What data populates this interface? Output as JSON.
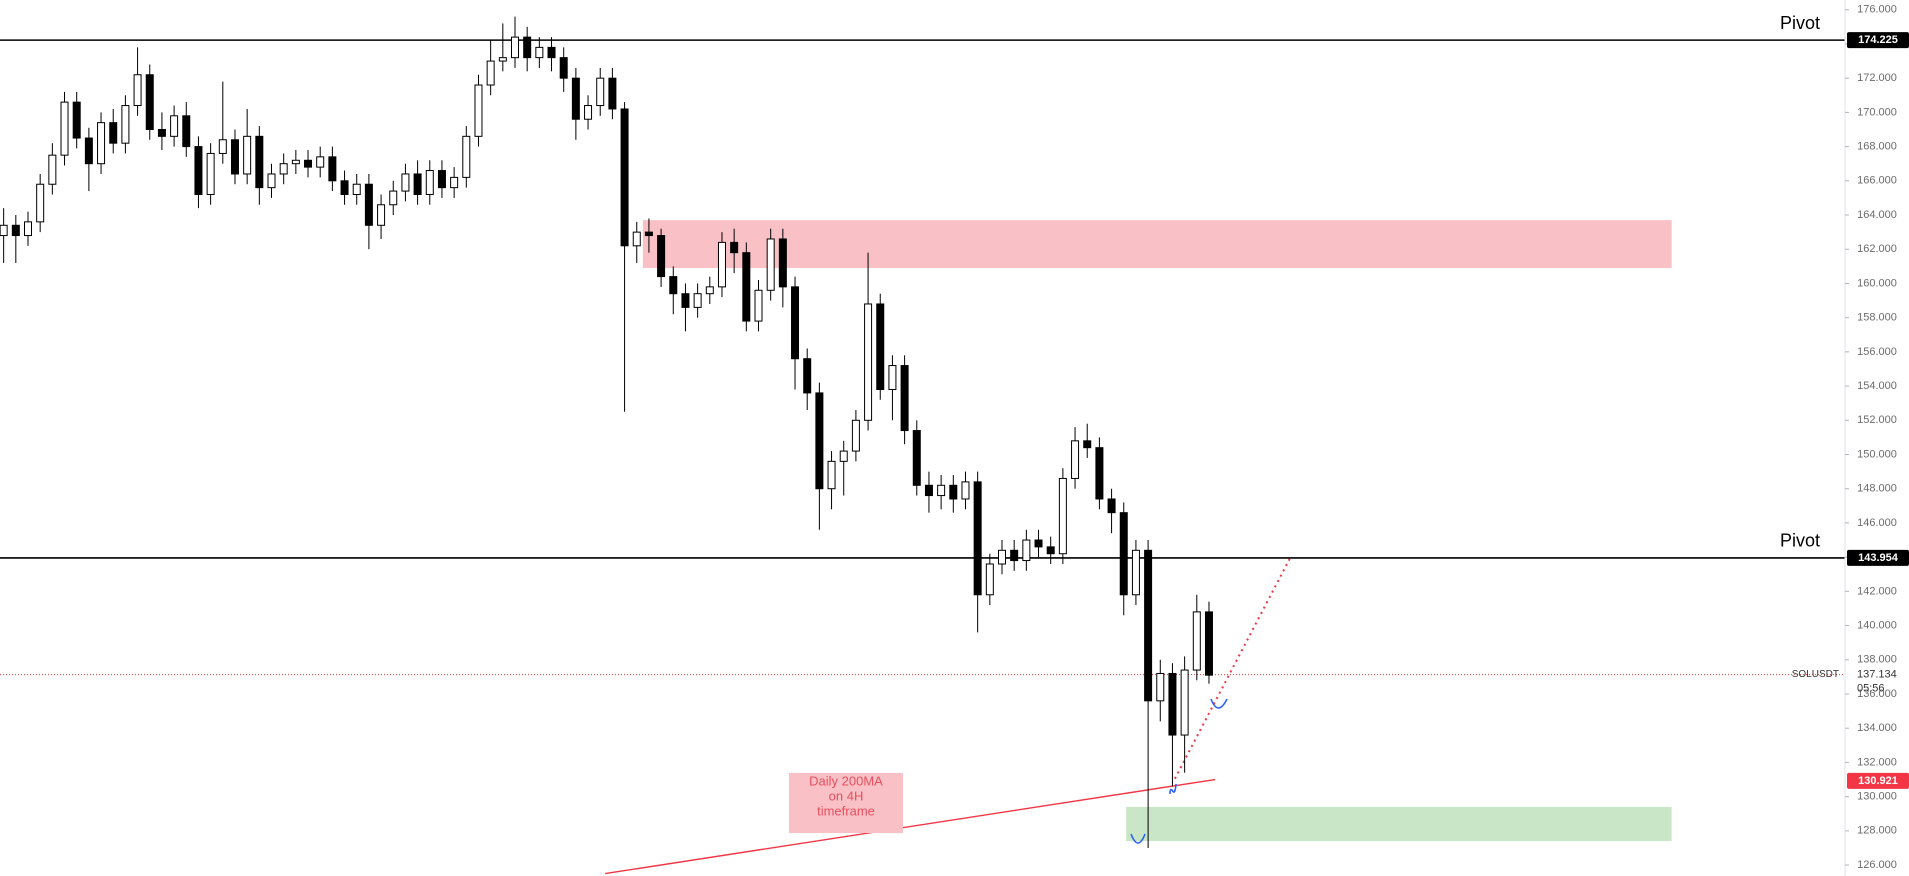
{
  "chart_data": {
    "type": "candlestick",
    "symbol": "SOLUSDT",
    "ylim": [
      125.36,
      176.57
    ],
    "yticks": [
      {
        "value": 126,
        "label": "126.000"
      },
      {
        "value": 128,
        "label": "128.000"
      },
      {
        "value": 130,
        "label": "130.000"
      },
      {
        "value": 132,
        "label": "132.000"
      },
      {
        "value": 134,
        "label": "134.000"
      },
      {
        "value": 136,
        "label": "136.000"
      },
      {
        "value": 138,
        "label": "138.000"
      },
      {
        "value": 140,
        "label": "140.000"
      },
      {
        "value": 142,
        "label": "142.000"
      },
      {
        "value": 144,
        "label": "144.000"
      },
      {
        "value": 146,
        "label": "146.000"
      },
      {
        "value": 148,
        "label": "148.000"
      },
      {
        "value": 150,
        "label": "150.000"
      },
      {
        "value": 152,
        "label": "152.000"
      },
      {
        "value": 154,
        "label": "154.000"
      },
      {
        "value": 156,
        "label": "156.000"
      },
      {
        "value": 158,
        "label": "158.000"
      },
      {
        "value": 160,
        "label": "160.000"
      },
      {
        "value": 162,
        "label": "162.000"
      },
      {
        "value": 164,
        "label": "164.000"
      },
      {
        "value": 166,
        "label": "166.000"
      },
      {
        "value": 168,
        "label": "168.000"
      },
      {
        "value": 170,
        "label": "170.000"
      },
      {
        "value": 172,
        "label": "172.000"
      },
      {
        "value": 174,
        "label": "174.000"
      },
      {
        "value": 176,
        "label": "176.000"
      }
    ],
    "open": [
      162.8,
      163.4,
      162.8,
      163.6,
      165.8,
      167.5,
      170.6,
      168.5,
      167.0,
      169.4,
      168.2,
      170.4,
      172.2,
      169.0,
      168.6,
      169.8,
      168.0,
      165.2,
      167.6,
      168.4,
      166.4,
      168.6,
      165.6,
      166.4,
      167.0,
      167.2,
      166.8,
      167.4,
      166.0,
      165.2,
      165.8,
      163.4,
      164.6,
      165.4,
      166.4,
      165.2,
      166.6,
      165.6,
      166.2,
      168.6,
      171.6,
      173.0,
      173.2,
      174.4,
      173.2,
      173.8,
      173.2,
      172.0,
      169.6,
      170.4,
      172.0,
      170.2,
      162.2,
      163.0,
      162.8,
      160.4,
      159.4,
      158.6,
      159.4,
      159.8,
      162.4,
      161.8,
      157.8,
      159.6,
      162.6,
      159.8,
      155.6,
      153.6,
      148.0,
      149.6,
      150.2,
      152.0,
      158.8,
      153.8,
      155.2,
      151.4,
      148.2,
      147.6,
      148.2,
      147.4,
      148.4,
      141.8,
      143.6,
      144.4,
      143.8,
      145.0,
      144.6,
      144.2,
      148.6,
      150.8,
      150.4,
      147.4,
      146.6,
      141.8,
      144.4,
      135.6,
      137.2,
      133.6,
      137.4,
      140.8
    ],
    "high": [
      164.4,
      164.0,
      164.2,
      166.4,
      168.2,
      171.2,
      171.2,
      169.1,
      170.0,
      170.2,
      171.0,
      173.8,
      172.8,
      170.0,
      170.4,
      170.6,
      168.6,
      168.2,
      171.8,
      169.0,
      170.2,
      169.2,
      167.0,
      167.6,
      167.8,
      167.8,
      168.0,
      168.0,
      166.6,
      166.4,
      166.4,
      165.2,
      166.0,
      167.0,
      167.2,
      167.2,
      167.2,
      166.8,
      169.2,
      172.2,
      174.2,
      175.2,
      175.6,
      175.0,
      174.4,
      174.4,
      173.8,
      172.6,
      171.0,
      172.6,
      172.6,
      170.6,
      163.6,
      163.8,
      163.2,
      161.0,
      160.0,
      160.0,
      160.4,
      163.0,
      163.2,
      162.4,
      160.2,
      163.2,
      163.2,
      160.4,
      156.2,
      154.2,
      150.2,
      150.8,
      152.6,
      161.8,
      159.4,
      155.8,
      155.8,
      152.0,
      149.0,
      148.8,
      148.8,
      149.0,
      149.0,
      144.2,
      145.0,
      145.0,
      145.6,
      145.6,
      145.2,
      149.2,
      151.6,
      151.8,
      151.0,
      148.0,
      147.2,
      145.0,
      145.0,
      138.0,
      137.8,
      138.2,
      141.8,
      141.4
    ],
    "low": [
      161.2,
      161.2,
      162.2,
      163.0,
      165.2,
      166.9,
      167.9,
      165.4,
      166.4,
      167.6,
      167.6,
      169.8,
      168.4,
      167.8,
      168.0,
      167.4,
      164.4,
      164.6,
      167.0,
      165.8,
      165.8,
      164.6,
      165.0,
      165.8,
      166.4,
      166.2,
      166.2,
      165.4,
      164.6,
      164.6,
      162.0,
      162.6,
      164.0,
      164.8,
      164.6,
      164.6,
      165.0,
      165.0,
      165.6,
      168.0,
      171.0,
      172.4,
      172.6,
      172.4,
      172.6,
      172.4,
      171.2,
      168.4,
      169.0,
      169.8,
      169.6,
      152.5,
      161.2,
      161.8,
      159.8,
      158.2,
      157.2,
      158.0,
      158.8,
      159.2,
      160.6,
      157.2,
      157.2,
      159.0,
      158.6,
      153.8,
      152.6,
      145.6,
      146.8,
      147.6,
      149.6,
      151.4,
      153.2,
      152.0,
      150.6,
      147.6,
      146.6,
      146.8,
      146.6,
      146.8,
      139.6,
      141.2,
      143.0,
      143.2,
      143.2,
      144.0,
      143.6,
      143.6,
      148.0,
      149.8,
      146.8,
      145.4,
      140.6,
      141.2,
      127.0,
      134.4,
      130.6,
      131.4,
      136.8,
      136.6
    ],
    "close": [
      163.4,
      162.8,
      163.6,
      165.8,
      167.5,
      170.6,
      168.5,
      167.0,
      169.4,
      168.2,
      170.4,
      172.2,
      169.0,
      168.6,
      169.8,
      168.0,
      165.2,
      167.6,
      168.4,
      166.4,
      168.6,
      165.6,
      166.4,
      167.0,
      167.2,
      166.8,
      167.4,
      166.0,
      165.2,
      165.8,
      163.4,
      164.6,
      165.4,
      166.4,
      165.2,
      166.6,
      165.6,
      166.2,
      168.6,
      171.6,
      173.0,
      173.2,
      174.4,
      173.2,
      173.8,
      173.2,
      172.0,
      169.6,
      170.4,
      172.0,
      170.2,
      162.2,
      163.0,
      162.8,
      160.4,
      159.4,
      158.6,
      159.4,
      159.8,
      162.4,
      161.8,
      157.8,
      159.6,
      162.6,
      159.8,
      155.6,
      153.6,
      148.0,
      149.6,
      150.2,
      152.0,
      158.8,
      153.8,
      155.2,
      151.4,
      148.2,
      147.6,
      148.2,
      147.4,
      148.4,
      141.8,
      143.6,
      144.4,
      143.8,
      145.0,
      144.6,
      144.2,
      148.6,
      150.8,
      150.4,
      147.4,
      146.6,
      141.8,
      144.4,
      135.6,
      137.2,
      133.6,
      137.4,
      140.8,
      137.1
    ],
    "levels": [
      {
        "label": "Pivot",
        "value": 174.225,
        "value_label": "174.225"
      },
      {
        "label": "Pivot",
        "value": 143.954,
        "value_label": "143.954"
      }
    ],
    "last_price": {
      "value": 137.134,
      "value_label": "137.134",
      "countdown": "05:56",
      "color": "#e53935"
    },
    "ma": {
      "value": 130.921,
      "value_label": "130.921",
      "color": "#f23645",
      "points": [
        [
          49.4,
          125.5
        ],
        [
          99.5,
          131.0
        ]
      ]
    },
    "trendline": {
      "color": "#f23645",
      "points": [
        [
          96.2,
          131.05
        ],
        [
          105.7,
          144.0
        ]
      ]
    },
    "zones": [
      {
        "color": "#f9c0c6",
        "x_range": [
          52.5,
          137
        ],
        "range": [
          160.9,
          163.7
        ]
      },
      {
        "color": "#c9e6c6",
        "x_range": [
          92.2,
          137
        ],
        "range": [
          127.4,
          129.4
        ]
      }
    ],
    "annotation": [
      "Daily 200MA",
      "on 4H",
      "timeframe"
    ]
  }
}
